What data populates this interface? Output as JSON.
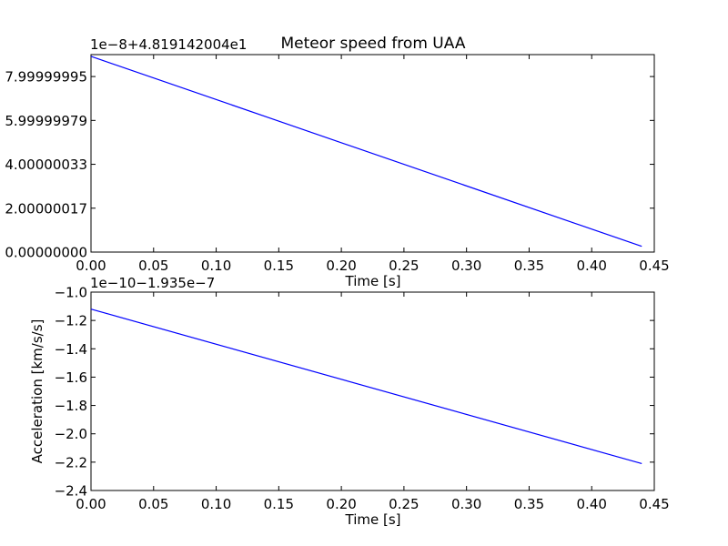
{
  "figure": {
    "background": "#ffffff",
    "line_color": "#0000ff"
  },
  "chart_data": [
    {
      "type": "line",
      "title": "Meteor speed from UAA",
      "offset_label": "1e−8+4.819142004e1",
      "xlabel": "Time [s]",
      "ylabel": "",
      "xlim": [
        0,
        0.45
      ],
      "ylim": [
        0,
        8.999999
      ],
      "xticks": [
        0,
        0.05,
        0.1,
        0.15,
        0.2,
        0.25,
        0.3,
        0.35,
        0.4,
        0.45
      ],
      "xtick_labels": [
        "0.00",
        "0.05",
        "0.10",
        "0.15",
        "0.20",
        "0.25",
        "0.30",
        "0.35",
        "0.40",
        "0.45"
      ],
      "yticks": [
        0,
        2.00000017,
        4.00000033,
        5.99999979,
        7.99999995
      ],
      "ytick_labels": [
        "0.00000000",
        "2.00000017",
        "4.00000033",
        "5.99999979",
        "7.99999995"
      ],
      "series": [
        {
          "x": [
            0,
            0.44
          ],
          "y": [
            8.92,
            0.26
          ]
        }
      ]
    },
    {
      "type": "line",
      "title": "",
      "offset_label": "1e−10−1.935e−7",
      "xlabel": "Time [s]",
      "ylabel": "Acceleration [km/s/s]",
      "xlim": [
        0,
        0.45
      ],
      "ylim": [
        -2.4,
        -1.0
      ],
      "xticks": [
        0,
        0.05,
        0.1,
        0.15,
        0.2,
        0.25,
        0.3,
        0.35,
        0.4,
        0.45
      ],
      "xtick_labels": [
        "0.00",
        "0.05",
        "0.10",
        "0.15",
        "0.20",
        "0.25",
        "0.30",
        "0.35",
        "0.40",
        "0.45"
      ],
      "yticks": [
        -2.4,
        -2.2,
        -2.0,
        -1.8,
        -1.6,
        -1.4,
        -1.2,
        -1.0
      ],
      "ytick_labels": [
        "−2.4",
        "−2.2",
        "−2.0",
        "−1.8",
        "−1.6",
        "−1.4",
        "−1.2",
        "−1.0"
      ],
      "series": [
        {
          "x": [
            0,
            0.44
          ],
          "y": [
            -1.12,
            -2.21
          ]
        }
      ]
    }
  ]
}
